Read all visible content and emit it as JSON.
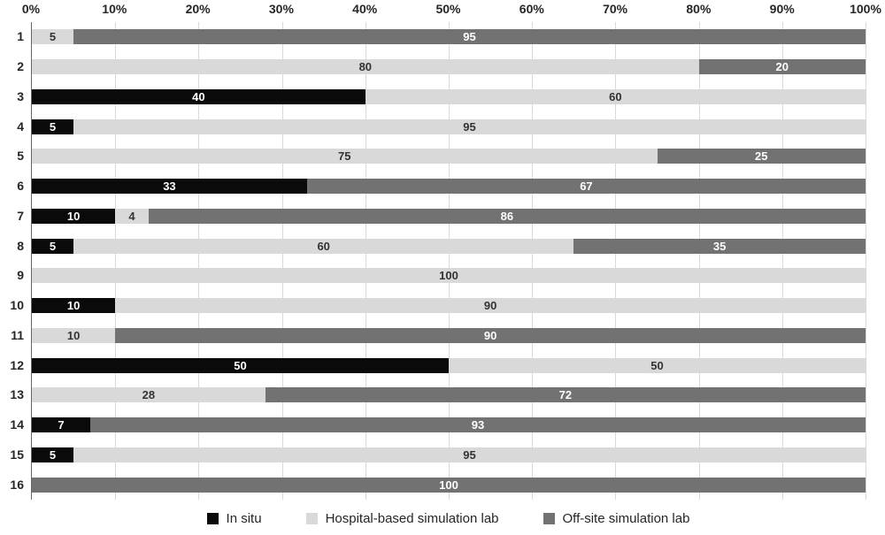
{
  "chart_data": {
    "type": "bar",
    "orientation": "horizontal",
    "stacked": true,
    "title": "",
    "xlabel": "",
    "ylabel": "",
    "categories": [
      "1",
      "2",
      "3",
      "4",
      "5",
      "6",
      "7",
      "8",
      "9",
      "10",
      "11",
      "12",
      "13",
      "14",
      "15",
      "16"
    ],
    "series": [
      {
        "name": "In situ",
        "color": "#0a0a0a",
        "label_color": "#ffffff",
        "values": [
          0,
          0,
          40,
          5,
          0,
          33,
          10,
          5,
          0,
          10,
          0,
          50,
          0,
          7,
          5,
          0
        ]
      },
      {
        "name": "Hospital-based simulation lab",
        "color": "#d9d9d9",
        "label_color": "#333333",
        "values": [
          5,
          80,
          60,
          95,
          75,
          0,
          4,
          60,
          100,
          90,
          10,
          50,
          28,
          0,
          95,
          0
        ]
      },
      {
        "name": "Off-site simulation lab",
        "color": "#727272",
        "label_color": "#ffffff",
        "values": [
          95,
          20,
          0,
          0,
          25,
          67,
          86,
          35,
          0,
          0,
          90,
          0,
          72,
          93,
          0,
          100
        ]
      }
    ],
    "x_axis": {
      "position": "top",
      "min": 0,
      "max": 100,
      "tick_step": 10,
      "ticks": [
        "0%",
        "10%",
        "20%",
        "30%",
        "40%",
        "50%",
        "60%",
        "70%",
        "80%",
        "90%",
        "100%"
      ]
    },
    "data_labels": true,
    "hide_zero_labels": true,
    "gridlines": "vertical",
    "legend_position": "bottom"
  },
  "legend": {
    "items": [
      {
        "label": "In situ",
        "color": "#0a0a0a"
      },
      {
        "label": "Hospital-based simulation lab",
        "color": "#d9d9d9"
      },
      {
        "label": "Off-site simulation lab",
        "color": "#727272"
      }
    ]
  },
  "colors": {
    "background": "#ffffff",
    "gridline": "#d9d9d9",
    "axis_line": "#666666",
    "tick_text": "#262626",
    "category_text": "#262626",
    "legend_text": "#262626"
  }
}
